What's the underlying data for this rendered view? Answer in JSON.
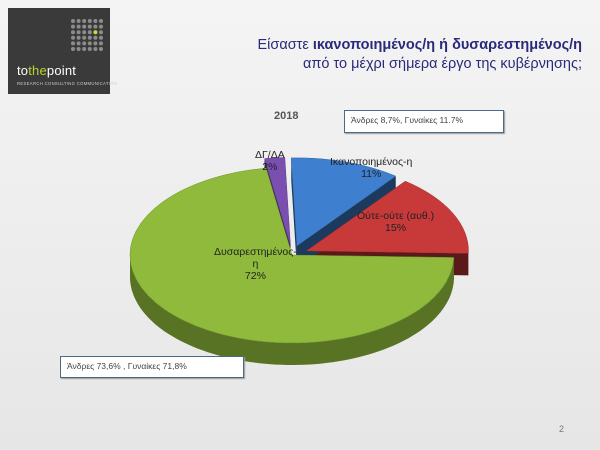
{
  "logo": {
    "brand_pre": "to",
    "brand_hl": "the",
    "brand_post": "point",
    "tagline": "RESEARCH  CONSULTING  COMMUNICATION"
  },
  "title": {
    "line1_pre": "Είσαστε ",
    "line1_bold": "ικανοποιημένος/η ή δυσαρεστημένος/η",
    "line2": "από το μέχρι σήμερα έργο της κυβέρνησης;"
  },
  "page_number": "2",
  "colors": {
    "satisfied": "#3f7fd0",
    "neutral": "#c8393a",
    "dissatisfied": "#8fba3c",
    "dk": "#7a4fb0"
  },
  "chart_data": {
    "type": "pie",
    "title": "2018",
    "slices": [
      {
        "key": "satisfied",
        "label": "Ικανοποιημένος-η",
        "value": 11,
        "value_label": "11%"
      },
      {
        "key": "neutral",
        "label": "Ούτε-ούτε (αυθ.)",
        "value": 15,
        "value_label": "15%"
      },
      {
        "key": "dissatisfied",
        "label_line1": "Δυσαρεστημένος-",
        "label_line2": "η",
        "value": 72,
        "value_label": "72%"
      },
      {
        "key": "dk",
        "label": "ΔΓ/ΔΑ",
        "value": 2,
        "value_label": "2%"
      }
    ],
    "annotations": {
      "satisfied_gender": "Άνδρες 8,7%, Γυναίκες 11.7%",
      "dissatisfied_gender": "Άνδρες 73,6% , Γυναίκες 71,8%"
    }
  }
}
